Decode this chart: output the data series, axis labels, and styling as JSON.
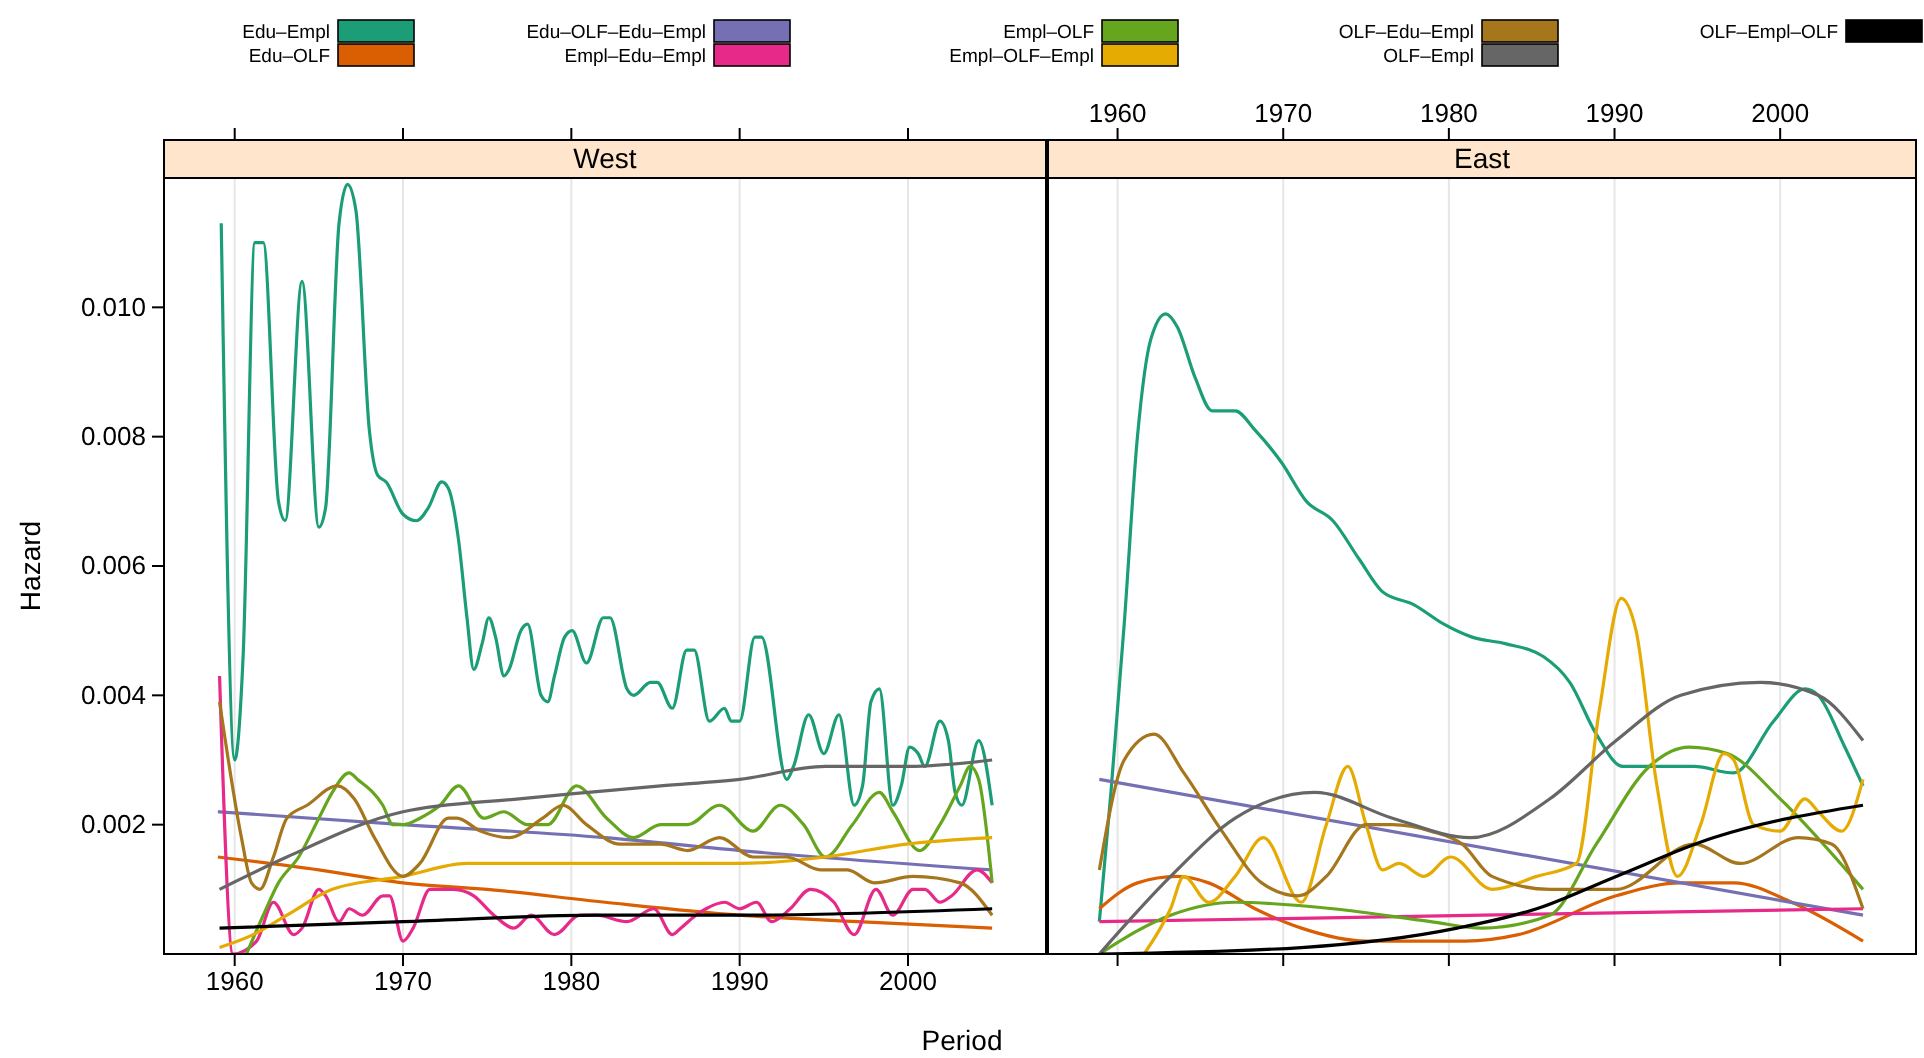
{
  "chart_data": [
    {
      "type": "line",
      "title": "West",
      "xlabel": "Period",
      "ylabel": "Hazard",
      "xlim": [
        1955.8,
        2008.2
      ],
      "ylim": [
        0,
        0.012
      ],
      "xticks": [
        1960,
        1970,
        1980,
        1990,
        2000
      ],
      "yticks": [
        0.002,
        0.004,
        0.006,
        0.008,
        {
          "value": 0.01,
          "label": "0.010"
        }
      ],
      "grid": "x",
      "legend": "top",
      "line_style": "solid",
      "marker": "none",
      "series": [
        {
          "name": "Edu–Empl",
          "color": "#1b9e77",
          "x": [
            1959.2,
            1960,
            1960.5,
            1961.2,
            1961.7,
            1962.6,
            1963,
            1964,
            1965,
            1965.4,
            1966.2,
            1966.7,
            1967.2,
            1968,
            1968.5,
            1969,
            1970,
            1970.8,
            1971.5,
            1972.3,
            1972.7,
            1973.3,
            1973.8,
            1974.2,
            1974.7,
            1975.1,
            1975.5,
            1976,
            1976.3,
            1977,
            1977.4,
            1978.2,
            1978.6,
            1979,
            1979.6,
            1980.05,
            1980.9,
            1981.9,
            1982.3,
            1983.3,
            1983.7,
            1984.7,
            1985.1,
            1986,
            1986.85,
            1987.3,
            1988.2,
            1989.1,
            1989.5,
            1990,
            1990.9,
            1991.3,
            1992.8,
            1993.2,
            1994.1,
            1995,
            1995.9,
            1996.8,
            1997.3,
            1997.8,
            1998.3,
            1999.1,
            1999.6,
            2000.1,
            2000.6,
            2001,
            2001.9,
            2002.4,
            2002.8,
            2003.2,
            2004.2,
            2005
          ],
          "values": [
            0.0113,
            0.003,
            0.0046,
            0.011,
            0.011,
            0.007,
            0.0067,
            0.0104,
            0.0066,
            0.0069,
            0.0113,
            0.0119,
            0.0115,
            0.0081,
            0.0074,
            0.0073,
            0.0068,
            0.0067,
            0.0069,
            0.0073,
            0.0072,
            0.0064,
            0.0052,
            0.0044,
            0.0048,
            0.0052,
            0.0049,
            0.0043,
            0.0044,
            0.005,
            0.0051,
            0.004,
            0.0039,
            0.0043,
            0.0049,
            0.005,
            0.0045,
            0.0052,
            0.0052,
            0.0041,
            0.004,
            0.0042,
            0.0042,
            0.0038,
            0.0047,
            0.0047,
            0.0036,
            0.0038,
            0.0036,
            0.0036,
            0.0049,
            0.0049,
            0.0027,
            0.0029,
            0.0037,
            0.0031,
            0.0037,
            0.0023,
            0.0026,
            0.0039,
            0.0041,
            0.0023,
            0.0026,
            0.0032,
            0.0031,
            0.0029,
            0.0036,
            0.0033,
            0.0025,
            0.0023,
            0.0033,
            0.0023
          ]
        },
        {
          "name": "Edu–OLF",
          "color": "#d95f02",
          "x": [
            1959,
            1965,
            1970,
            1975,
            1982,
            1990,
            1997,
            2005
          ],
          "values": [
            0.0015,
            0.0013,
            0.0011,
            0.001,
            0.0008,
            0.0006,
            0.0005,
            0.0004
          ]
        },
        {
          "name": "Edu–OLF–Edu–Empl",
          "color": "#7570b3",
          "x": [
            1959,
            1970,
            1982,
            1990,
            2005
          ],
          "values": [
            0.0022,
            0.002,
            0.0018,
            0.0016,
            0.0013
          ]
        },
        {
          "name": "Empl–Edu–Empl",
          "color": "#e7298a",
          "x": [
            1959.1,
            1959.9,
            1961.3,
            1962.3,
            1963.5,
            1964,
            1965,
            1965.4,
            1966.2,
            1966.8,
            1967.6,
            1968.8,
            1969.2,
            1970,
            1970.6,
            1971.6,
            1973,
            1974.2,
            1975.4,
            1976.6,
            1977.6,
            1979,
            1980.5,
            1981.5,
            1983.3,
            1984.9,
            1986,
            1986.5,
            1987.4,
            1988,
            1989.1,
            1990,
            1991,
            1991.9,
            1993,
            1994.2,
            1995.6,
            1996.8,
            1998.1,
            1999.1,
            2000.3,
            2001,
            2001.9,
            2002.6,
            2004.1,
            2005
          ],
          "values": [
            0.0043,
            0,
            0.0002,
            0.0008,
            0.0003,
            0.0004,
            0.001,
            0.0009,
            0.0005,
            0.0007,
            0.0006,
            0.0009,
            0.0009,
            0.0002,
            0.0004,
            0.001,
            0.001,
            0.0009,
            0.0006,
            0.0004,
            0.0006,
            0.0003,
            0.0006,
            0.0006,
            0.0005,
            0.0007,
            0.0003,
            0.0004,
            0.0006,
            0.0007,
            0.0008,
            0.0007,
            0.0008,
            0.0005,
            0.0007,
            0.001,
            0.0008,
            0.0003,
            0.001,
            0.0006,
            0.001,
            0.001,
            0.0008,
            0.0009,
            0.0013,
            0.0011
          ]
        },
        {
          "name": "Empl–OLF",
          "color": "#66a61e",
          "x": [
            1960.7,
            1961.7,
            1962.6,
            1963.8,
            1965,
            1965.8,
            1966.8,
            1967.3,
            1968.8,
            1969.4,
            1970,
            1971,
            1972.2,
            1973.3,
            1974.8,
            1976,
            1977.4,
            1978.6,
            1980.3,
            1982.1,
            1983.7,
            1985.3,
            1986.9,
            1988.8,
            1990.8,
            1992.4,
            1993.8,
            1995.1,
            1996.7,
            1998.3,
            1999.1,
            2000.7,
            2001.9,
            2003.1,
            2003.7,
            2004.2,
            2005
          ],
          "values": [
            0,
            0.0006,
            0.0011,
            0.0015,
            0.0021,
            0.0025,
            0.0028,
            0.0027,
            0.0023,
            0.002,
            0.002,
            0.0021,
            0.0023,
            0.0026,
            0.0021,
            0.0022,
            0.002,
            0.002,
            0.0026,
            0.0021,
            0.0018,
            0.002,
            0.002,
            0.0023,
            0.0019,
            0.0023,
            0.002,
            0.0015,
            0.002,
            0.0025,
            0.0022,
            0.0016,
            0.002,
            0.0026,
            0.0029,
            0.0027,
            0.0011
          ]
        },
        {
          "name": "Empl–OLF–Empl",
          "color": "#e6ab02",
          "x": [
            1959.1,
            1961.1,
            1963.1,
            1965.8,
            1970,
            1973.8,
            1977.8,
            1982,
            1990,
            1995.1,
            1999.9,
            2005
          ],
          "values": [
            0.0001,
            0.0003,
            0.0006,
            0.001,
            0.0012,
            0.0014,
            0.0014,
            0.0014,
            0.0014,
            0.0015,
            0.0017,
            0.0018
          ]
        },
        {
          "name": "OLF–Edu–Empl",
          "color": "#a6761d",
          "x": [
            1959.1,
            1960.4,
            1961,
            1961.5,
            1962.3,
            1963.1,
            1964.3,
            1966.1,
            1967.1,
            1968.3,
            1970,
            1971,
            1972.7,
            1973.2,
            1974.6,
            1976.3,
            1978.3,
            1979.5,
            1980.9,
            1982.9,
            1985.3,
            1986.9,
            1988.8,
            1990.8,
            1992.8,
            1994.8,
            1996.4,
            1998,
            2000.3,
            2003.1,
            2005
          ],
          "values": [
            0.0039,
            0.0018,
            0.0011,
            0.001,
            0.0015,
            0.0021,
            0.0023,
            0.0026,
            0.0024,
            0.0018,
            0.0012,
            0.0014,
            0.0021,
            0.0021,
            0.0019,
            0.0018,
            0.0021,
            0.0023,
            0.002,
            0.0017,
            0.0017,
            0.0016,
            0.0018,
            0.0015,
            0.0015,
            0.0013,
            0.0013,
            0.0011,
            0.0012,
            0.0011,
            0.0006
          ]
        },
        {
          "name": "OLF–Empl",
          "color": "#666666",
          "x": [
            1959.1,
            1963.1,
            1970,
            1976.9,
            1981,
            1985.3,
            1990,
            1995.1,
            1999.9,
            2005
          ],
          "values": [
            0.001,
            0.0015,
            0.0022,
            0.0024,
            0.0025,
            0.0026,
            0.0027,
            0.0029,
            0.0029,
            0.003
          ]
        },
        {
          "name": "OLF–Empl–OLF",
          "color": "#000000",
          "x": [
            1959.1,
            1970,
            1981.7,
            1990,
            2005
          ],
          "values": [
            0.0004,
            0.0005,
            0.0006,
            0.0006,
            0.0007
          ]
        }
      ]
    },
    {
      "type": "line",
      "title": "East",
      "xlim": [
        1955.8,
        2008.2
      ],
      "ylim": [
        0,
        0.012
      ],
      "xticks": [
        1960,
        1970,
        1980,
        1990,
        2000
      ],
      "tick_labels": "x",
      "grid": "x",
      "line_style": "solid",
      "marker": "none",
      "series": [
        {
          "color": "#1b9e77",
          "x": [
            1958.9,
            1959.6,
            1960.4,
            1961.2,
            1962,
            1962.9,
            1963.6,
            1964.7,
            1965.7,
            1967.1,
            1968.3,
            1969.9,
            1971.4,
            1973,
            1974.6,
            1976,
            1977.9,
            1979.7,
            1981.4,
            1983.4,
            1985.7,
            1987.3,
            1988.9,
            1990.5,
            1992.1,
            1994.8,
            1997.2,
            1999.6,
            2001.5,
            2002.3,
            2003.9,
            2005
          ],
          "values": [
            0.0005,
            0.0025,
            0.0051,
            0.008,
            0.0095,
            0.0099,
            0.0097,
            0.0089,
            0.0084,
            0.0084,
            0.0081,
            0.0076,
            0.007,
            0.0067,
            0.0061,
            0.0056,
            0.0054,
            0.0051,
            0.0049,
            0.0048,
            0.0046,
            0.0042,
            0.0034,
            0.0029,
            0.0029,
            0.0029,
            0.0028,
            0.0036,
            0.0041,
            0.004,
            0.0032,
            0.0026
          ]
        },
        {
          "color": "#d95f02",
          "x": [
            1958.9,
            1961.2,
            1963.6,
            1965.5,
            1968.3,
            1971.1,
            1975,
            1981,
            1984.2,
            1990.1,
            1994,
            1997.2,
            2000.7,
            2005
          ],
          "values": [
            0.0007,
            0.0011,
            0.0012,
            0.0011,
            0.0007,
            0.0004,
            0.0002,
            0.0002,
            0.0003,
            0.0009,
            0.0011,
            0.0011,
            0.0008,
            0.0002
          ]
        },
        {
          "color": "#7570b3",
          "x": [
            1958.9,
            2005
          ],
          "values": [
            0.0027,
            0.0006
          ]
        },
        {
          "color": "#e7298a",
          "x": [
            1958.9,
            2005
          ],
          "values": [
            0.0005,
            0.0007
          ]
        },
        {
          "color": "#66a61e",
          "x": [
            1958.9,
            1963.2,
            1967.1,
            1973,
            1978.9,
            1982,
            1986.1,
            1988.9,
            1992.1,
            1994.5,
            1996.8,
            2000,
            2005
          ],
          "values": [
            0,
            0.0006,
            0.0008,
            0.0007,
            0.0005,
            0.0004,
            0.0006,
            0.0017,
            0.0029,
            0.0032,
            0.0031,
            0.0024,
            0.001
          ]
        },
        {
          "color": "#e6ab02",
          "x": [
            1961.6,
            1963.2,
            1964,
            1965.5,
            1967.1,
            1968.8,
            1971.1,
            1972.6,
            1973.9,
            1975,
            1976,
            1977,
            1978.5,
            1980.1,
            1982.6,
            1985.3,
            1987.7,
            1989.1,
            1990.4,
            1991.3,
            1992.5,
            1993.8,
            1995.2,
            1996.6,
            1997.2,
            1998.4,
            2000,
            2001.5,
            2002.3,
            2003.7,
            2005
          ],
          "values": [
            0,
            0.0007,
            0.0012,
            0.0008,
            0.0012,
            0.0018,
            0.0008,
            0.002,
            0.0029,
            0.002,
            0.0013,
            0.0014,
            0.0012,
            0.0015,
            0.001,
            0.0012,
            0.0014,
            0.0038,
            0.0055,
            0.005,
            0.0027,
            0.0012,
            0.002,
            0.0031,
            0.003,
            0.002,
            0.0019,
            0.0024,
            0.0022,
            0.0019,
            0.0027
          ]
        },
        {
          "color": "#a6761d",
          "x": [
            1958.9,
            1960.4,
            1962.2,
            1964,
            1966.3,
            1968.7,
            1970.9,
            1972.6,
            1975,
            1976.6,
            1978.9,
            1980.8,
            1982.6,
            1986.1,
            1990.1,
            1994.8,
            1997.6,
            2001.1,
            2003.1,
            2005
          ],
          "values": [
            0.0013,
            0.003,
            0.0034,
            0.0028,
            0.0019,
            0.0011,
            0.0009,
            0.0012,
            0.002,
            0.002,
            0.0019,
            0.0017,
            0.0012,
            0.001,
            0.001,
            0.0017,
            0.0014,
            0.0018,
            0.0017,
            0.0007
          ]
        },
        {
          "color": "#666666",
          "x": [
            1958.9,
            1963.2,
            1967.1,
            1971.9,
            1976.6,
            1981.3,
            1986.1,
            1990.1,
            1994,
            1998.8,
            2002.3,
            2005
          ],
          "values": [
            0,
            0.0012,
            0.0021,
            0.0025,
            0.0021,
            0.0018,
            0.0024,
            0.0033,
            0.004,
            0.0042,
            0.004,
            0.0033
          ]
        },
        {
          "color": "#000000",
          "x": [
            1959,
            1971.1,
            1980.5,
            1985.3,
            1990.1,
            1996,
            2005
          ],
          "values": [
            0,
            0.0001,
            0.0004,
            0.0007,
            0.0012,
            0.0018,
            0.0023
          ]
        }
      ]
    }
  ]
}
